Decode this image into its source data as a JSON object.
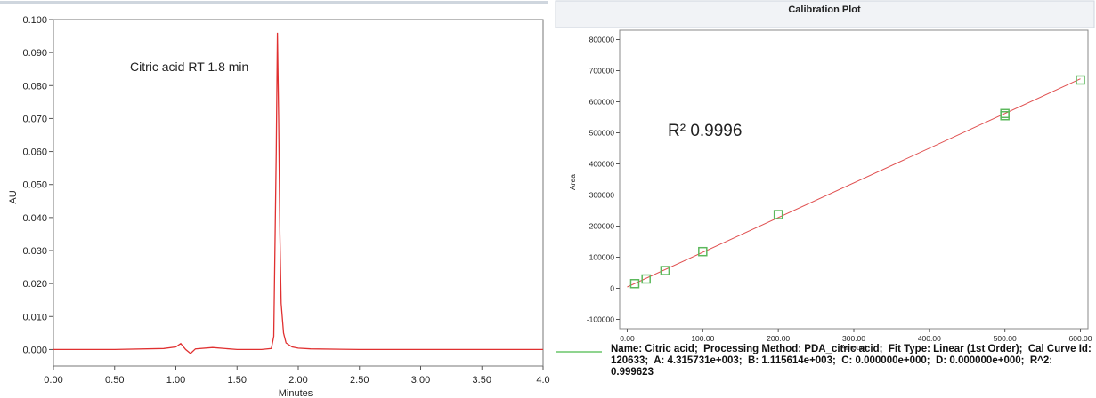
{
  "chart_data": [
    {
      "type": "line",
      "title": "",
      "xlabel": "Minutes",
      "ylabel": "AU",
      "xlim": [
        0,
        4.0
      ],
      "ylim": [
        -0.005,
        0.1
      ],
      "x_ticks": [
        "0.00",
        "0.50",
        "1.00",
        "1.50",
        "2.00",
        "2.50",
        "3.00",
        "3.50",
        "4.0"
      ],
      "y_ticks": [
        "0.000",
        "0.010",
        "0.020",
        "0.030",
        "0.040",
        "0.050",
        "0.060",
        "0.070",
        "0.080",
        "0.090",
        "0.100"
      ],
      "annotation": "Citric acid RT 1.8 min",
      "series_color": "#e03030",
      "x": [
        0.0,
        0.5,
        0.9,
        1.0,
        1.04,
        1.08,
        1.12,
        1.16,
        1.3,
        1.5,
        1.7,
        1.78,
        1.8,
        1.82,
        1.83,
        1.84,
        1.85,
        1.86,
        1.88,
        1.9,
        1.95,
        2.0,
        2.1,
        2.5,
        3.0,
        3.5,
        4.0
      ],
      "y": [
        0.0,
        0.0,
        0.0003,
        0.0008,
        0.0018,
        0.0,
        -0.0012,
        0.0002,
        0.0006,
        0.0,
        0.0,
        0.0003,
        0.004,
        0.06,
        0.096,
        0.07,
        0.035,
        0.014,
        0.005,
        0.002,
        0.0008,
        0.0004,
        0.0002,
        0.0,
        0.0,
        0.0,
        0.0
      ]
    },
    {
      "type": "scatter",
      "title": "Calibration Plot",
      "xlabel": "Amount",
      "ylabel": "Area",
      "xlim": [
        -10,
        610
      ],
      "ylim": [
        -130000,
        830000
      ],
      "x_ticks": [
        "0.00",
        "100.00",
        "200.00",
        "300.00",
        "400.00",
        "500.00",
        "600.00"
      ],
      "y_ticks": [
        "-100000",
        "0",
        "100000",
        "200000",
        "300000",
        "400000",
        "500000",
        "600000",
        "700000",
        "800000"
      ],
      "annotation": "R² 0.9996",
      "points_color": "#5cb85c",
      "fit_color": "#e05050",
      "points": [
        {
          "x": 10,
          "y": 15000
        },
        {
          "x": 25,
          "y": 30000
        },
        {
          "x": 50,
          "y": 57000
        },
        {
          "x": 100,
          "y": 118000
        },
        {
          "x": 200,
          "y": 237000
        },
        {
          "x": 500,
          "y": 555000
        },
        {
          "x": 500,
          "y": 562000
        },
        {
          "x": 600,
          "y": 670000
        }
      ],
      "fit": {
        "slope": 1115.614,
        "intercept": 4315.731
      },
      "legend": {
        "name": "Name: Citric acid;",
        "method": "Processing Method: PDA_citric acid;",
        "fit_type": "Fit Type: Linear (1st Order);",
        "cal_curve": "Cal Curve Id: 120633;",
        "a": "A: 4.315731e+003;",
        "b": "B: 1.115614e+003;",
        "c": "C: 0.000000e+000;",
        "d": "D: 0.000000e+000;",
        "r2": "R^2: 0.999623"
      }
    }
  ]
}
